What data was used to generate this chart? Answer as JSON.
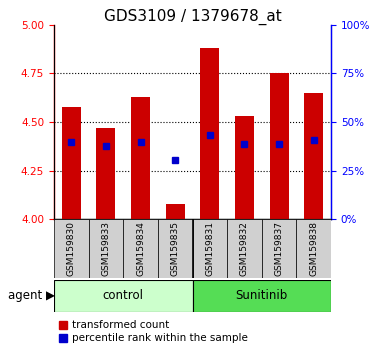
{
  "title": "GDS3109 / 1379678_at",
  "samples": [
    "GSM159830",
    "GSM159833",
    "GSM159834",
    "GSM159835",
    "GSM159831",
    "GSM159832",
    "GSM159837",
    "GSM159838"
  ],
  "bar_tops": [
    4.58,
    4.47,
    4.63,
    4.08,
    4.88,
    4.53,
    4.75,
    4.65
  ],
  "blue_dots": [
    4.4,
    4.375,
    4.4,
    4.305,
    4.435,
    4.39,
    4.39,
    4.41
  ],
  "bar_bottom": 4.0,
  "ylim": [
    4.0,
    5.0
  ],
  "y2lim": [
    0,
    100
  ],
  "yticks": [
    4.0,
    4.25,
    4.5,
    4.75,
    5.0
  ],
  "y2ticks": [
    0,
    25,
    50,
    75,
    100
  ],
  "bar_color": "#cc0000",
  "dot_color": "#0000cc",
  "control_color": "#ccffcc",
  "sunitinib_color": "#55dd55",
  "agent_label": "agent",
  "xlabel_control": "control",
  "xlabel_sunitinib": "Sunitinib",
  "bar_width": 0.55,
  "title_fontsize": 11,
  "tick_fontsize": 7.5,
  "label_fontsize": 8.5,
  "legend_fontsize": 7.5,
  "sample_fontsize": 6.5
}
